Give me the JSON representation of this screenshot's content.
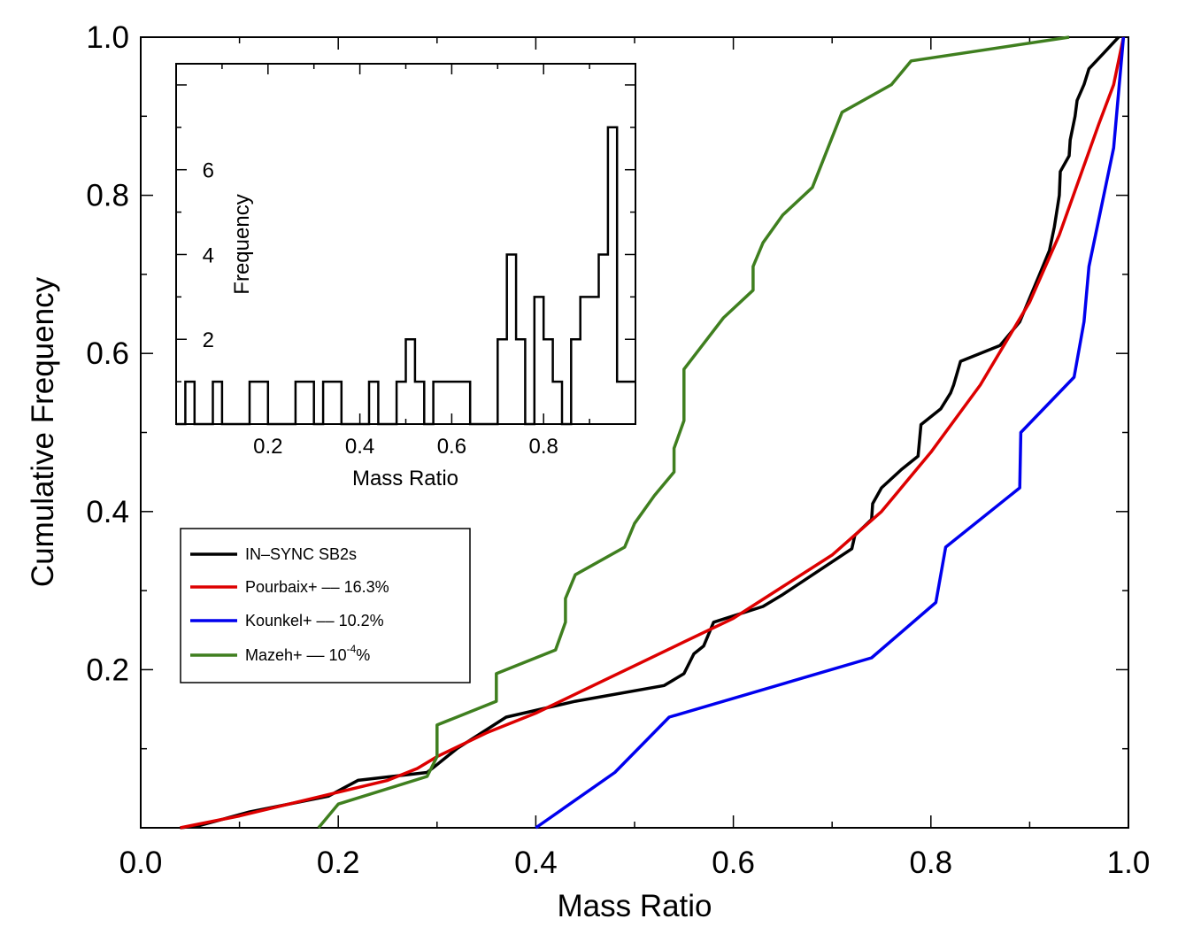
{
  "chart_data": [
    {
      "type": "line",
      "xlabel": "Mass Ratio",
      "ylabel": "Cumulative Frequency",
      "xlim": [
        0.0,
        1.0
      ],
      "ylim": [
        0.0,
        1.0
      ],
      "xticks": [
        "0.0",
        "0.2",
        "0.4",
        "0.6",
        "0.8",
        "1.0"
      ],
      "yticks": [
        "0.2",
        "0.4",
        "0.6",
        "0.8",
        "1.0"
      ],
      "legend_position": "bottom-left",
      "series": [
        {
          "name": "IN-SYNC SB2s",
          "color": "#000000",
          "x": [
            0.04,
            0.06,
            0.11,
            0.19,
            0.22,
            0.29,
            0.3,
            0.32,
            0.37,
            0.44,
            0.53,
            0.55,
            0.56,
            0.57,
            0.58,
            0.63,
            0.65,
            0.72,
            0.723,
            0.74,
            0.741,
            0.75,
            0.77,
            0.787,
            0.79,
            0.81,
            0.82,
            0.823,
            0.83,
            0.87,
            0.89,
            0.91,
            0.92,
            0.925,
            0.93,
            0.931,
            0.94,
            0.941,
            0.946,
            0.948,
            0.955,
            0.96,
            0.975,
            0.99
          ],
          "y": [
            0.0,
            0.003,
            0.02,
            0.04,
            0.06,
            0.07,
            0.08,
            0.1,
            0.14,
            0.16,
            0.18,
            0.195,
            0.22,
            0.23,
            0.26,
            0.28,
            0.295,
            0.353,
            0.37,
            0.39,
            0.41,
            0.43,
            0.453,
            0.47,
            0.51,
            0.53,
            0.55,
            0.56,
            0.59,
            0.61,
            0.64,
            0.7,
            0.73,
            0.76,
            0.8,
            0.83,
            0.85,
            0.87,
            0.9,
            0.92,
            0.94,
            0.96,
            0.98,
            1.0
          ]
        },
        {
          "name": "Pourbaix+ -- 16.3%",
          "color": "#dd0000",
          "x": [
            0.04,
            0.06,
            0.1,
            0.15,
            0.2,
            0.25,
            0.28,
            0.3,
            0.35,
            0.4,
            0.45,
            0.5,
            0.55,
            0.6,
            0.65,
            0.7,
            0.75,
            0.8,
            0.85,
            0.9,
            0.93,
            0.95,
            0.97,
            0.985,
            0.995
          ],
          "y": [
            0.0,
            0.005,
            0.015,
            0.03,
            0.045,
            0.06,
            0.075,
            0.09,
            0.12,
            0.145,
            0.175,
            0.205,
            0.235,
            0.265,
            0.305,
            0.345,
            0.4,
            0.475,
            0.56,
            0.665,
            0.75,
            0.82,
            0.89,
            0.94,
            1.0
          ]
        },
        {
          "name": "Kounkel+ -- 10.2%",
          "color": "#0000ee",
          "x": [
            0.4,
            0.48,
            0.535,
            0.74,
            0.805,
            0.815,
            0.89,
            0.891,
            0.945,
            0.955,
            0.96,
            0.985,
            0.995
          ],
          "y": [
            0.0,
            0.07,
            0.14,
            0.215,
            0.285,
            0.355,
            0.43,
            0.5,
            0.57,
            0.64,
            0.71,
            0.86,
            1.0
          ]
        },
        {
          "name": "Mazeh+ -- 10^-4%",
          "color": "#3f7f1f",
          "x": [
            0.18,
            0.2,
            0.29,
            0.3,
            0.3,
            0.36,
            0.36,
            0.42,
            0.43,
            0.43,
            0.44,
            0.49,
            0.5,
            0.52,
            0.54,
            0.54,
            0.55,
            0.55,
            0.59,
            0.62,
            0.62,
            0.63,
            0.65,
            0.68,
            0.71,
            0.76,
            0.78,
            0.94
          ],
          "y": [
            0.0,
            0.03,
            0.065,
            0.09,
            0.13,
            0.16,
            0.195,
            0.225,
            0.26,
            0.29,
            0.32,
            0.355,
            0.385,
            0.42,
            0.45,
            0.48,
            0.515,
            0.58,
            0.645,
            0.68,
            0.71,
            0.74,
            0.775,
            0.81,
            0.905,
            0.94,
            0.97,
            1.0
          ]
        }
      ],
      "legend": [
        {
          "label": "IN–SYNC SB2s",
          "color": "#000000"
        },
        {
          "label": "Pourbaix+ –– 16.3%",
          "color": "#dd0000"
        },
        {
          "label": "Kounkel+ –– 10.2%",
          "color": "#0000ee"
        },
        {
          "label_main": "Mazeh+ –– 10",
          "label_exp": "-4",
          "label_suffix": "%",
          "color": "#3f7f1f"
        }
      ]
    },
    {
      "type": "bar",
      "subtype": "histogram",
      "inset": true,
      "xlabel": "Mass Ratio",
      "ylabel": "Frequency",
      "xlim": [
        0.0,
        1.0
      ],
      "ylim": [
        0,
        8.5
      ],
      "xticks": [
        "0.2",
        "0.4",
        "0.6",
        "0.8"
      ],
      "yticks": [
        "2",
        "4",
        "6"
      ],
      "bin_edges": [
        0.0,
        0.02,
        0.04,
        0.06,
        0.08,
        0.1,
        0.12,
        0.14,
        0.16,
        0.18,
        0.2,
        0.22,
        0.24,
        0.26,
        0.28,
        0.3,
        0.32,
        0.34,
        0.36,
        0.38,
        0.4,
        0.42,
        0.44,
        0.46,
        0.48,
        0.5,
        0.52,
        0.54,
        0.56,
        0.58,
        0.6,
        0.62,
        0.64,
        0.66,
        0.68,
        0.7,
        0.72,
        0.74,
        0.76,
        0.78,
        0.8,
        0.82,
        0.84,
        0.86,
        0.88,
        0.9,
        0.92,
        0.94,
        0.96,
        0.98,
        1.0
      ],
      "values": [
        0,
        1,
        0,
        0,
        1,
        0,
        0,
        0,
        1,
        1,
        0,
        0,
        0,
        1,
        1,
        0,
        1,
        1,
        0,
        0,
        0,
        1,
        0,
        0,
        1,
        2,
        1,
        0,
        1,
        1,
        1,
        1,
        0,
        0,
        0,
        2,
        4,
        2,
        0,
        3,
        2,
        1,
        0,
        2,
        3,
        3,
        4,
        7,
        1,
        1
      ]
    }
  ]
}
